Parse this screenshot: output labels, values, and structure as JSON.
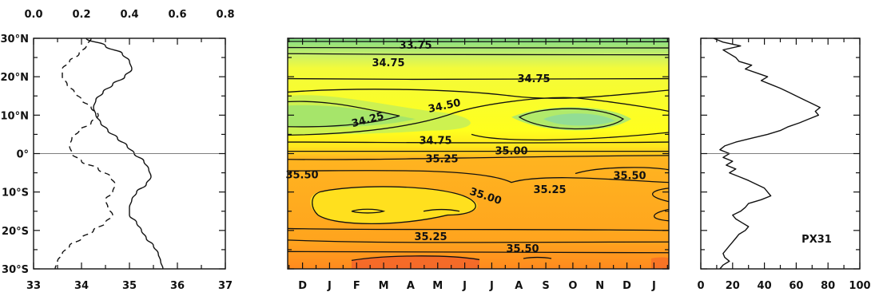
{
  "chart_data": [
    {
      "type": "line",
      "panel": "left",
      "bottom_axis": {
        "ticks": [
          "33",
          "34",
          "35",
          "36",
          "37"
        ],
        "lim": [
          33,
          37
        ]
      },
      "top_axis": {
        "ticks": [
          "0.0",
          "0.2",
          "0.4",
          "0.6",
          "0.8"
        ],
        "lim": [
          0.0,
          0.8
        ]
      },
      "y_axis": {
        "ticks": [
          "30°N",
          "20°N",
          "10°N",
          "0°",
          "10°S",
          "20°S",
          "30°S"
        ],
        "lim": [
          -30,
          30
        ]
      },
      "series": [
        {
          "style": "solid",
          "axis": "bottom",
          "y": [
            30,
            28,
            26,
            24,
            22,
            20,
            18,
            16,
            14,
            12,
            10,
            8,
            6,
            4,
            2,
            0,
            -2,
            -4,
            -6,
            -8,
            -10,
            -12,
            -14,
            -16,
            -18,
            -20,
            -22,
            -24,
            -26,
            -28,
            -30
          ],
          "x": [
            34.1,
            34.5,
            34.85,
            35.0,
            35.05,
            34.9,
            34.65,
            34.45,
            34.3,
            34.25,
            34.3,
            34.4,
            34.55,
            34.75,
            34.95,
            35.1,
            35.3,
            35.4,
            35.45,
            35.35,
            35.15,
            35.05,
            35.0,
            35.0,
            35.15,
            35.25,
            35.35,
            35.5,
            35.6,
            35.65,
            35.7
          ]
        },
        {
          "style": "dashed",
          "axis": "top",
          "y": [
            30,
            28,
            26,
            24,
            22,
            20,
            18,
            16,
            14,
            12,
            10,
            8,
            6,
            4,
            2,
            0,
            -2,
            -4,
            -6,
            -8,
            -10,
            -12,
            -14,
            -16,
            -18,
            -20,
            -22,
            -24,
            -26,
            -28,
            -30
          ],
          "x": [
            0.24,
            0.22,
            0.19,
            0.15,
            0.12,
            0.12,
            0.14,
            0.17,
            0.2,
            0.24,
            0.27,
            0.24,
            0.19,
            0.16,
            0.15,
            0.16,
            0.2,
            0.27,
            0.32,
            0.34,
            0.33,
            0.3,
            0.31,
            0.33,
            0.3,
            0.25,
            0.2,
            0.15,
            0.12,
            0.1,
            0.09
          ]
        }
      ]
    },
    {
      "type": "heatmap",
      "panel": "middle",
      "x_ticks": [
        "D",
        "J",
        "F",
        "M",
        "A",
        "M",
        "J",
        "J",
        "A",
        "S",
        "O",
        "N",
        "D",
        "J"
      ],
      "y_lim": [
        -30,
        30
      ],
      "contour_labels": [
        "33.75",
        "34.75",
        "34.75",
        "34.25",
        "34.50",
        "34.75",
        "35.00",
        "35.25",
        "35.50",
        "35.00",
        "35.25",
        "35.50",
        "35.25",
        "35.50"
      ],
      "colors": {
        "green": "#8fe08a",
        "yellow": "#ffff2a",
        "orange": "#ffa01e",
        "red": "#f2552a"
      }
    },
    {
      "type": "line",
      "panel": "right",
      "x_axis": {
        "ticks": [
          "0",
          "20",
          "40",
          "60",
          "80",
          "100"
        ],
        "lim": [
          0,
          100
        ]
      },
      "label": "PX31",
      "series": [
        {
          "style": "solid",
          "y": [
            30,
            29,
            28,
            27,
            26,
            25,
            24,
            23,
            22,
            21,
            20,
            19,
            18,
            17,
            16,
            15,
            14,
            13,
            12,
            11,
            10,
            9,
            8,
            7,
            6,
            5,
            4,
            3,
            2,
            1,
            0,
            -1,
            -2,
            -3,
            -4,
            -5,
            -6,
            -7,
            -8,
            -9,
            -10,
            -11,
            -12,
            -13,
            -14,
            -15,
            -16,
            -17,
            -18,
            -19,
            -20,
            -21,
            -22,
            -23,
            -24,
            -25,
            -26,
            -27,
            -28,
            -29,
            -30
          ],
          "x": [
            8,
            14,
            25,
            14,
            18,
            22,
            24,
            32,
            28,
            35,
            42,
            38,
            44,
            50,
            55,
            60,
            65,
            70,
            75,
            72,
            74,
            68,
            62,
            55,
            50,
            42,
            32,
            22,
            15,
            12,
            18,
            14,
            20,
            16,
            22,
            18,
            24,
            30,
            35,
            40,
            42,
            44,
            38,
            30,
            28,
            25,
            20,
            22,
            26,
            30,
            28,
            24,
            22,
            20,
            18,
            16,
            14,
            15,
            18,
            14,
            12
          ]
        }
      ]
    }
  ]
}
